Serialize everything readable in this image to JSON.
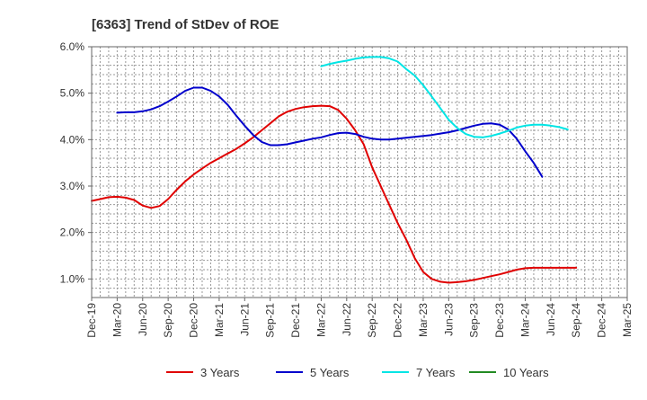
{
  "chart_data": {
    "type": "line",
    "title": "[6363]  Trend of StDev of ROE",
    "xlabel": "",
    "ylabel": "",
    "x_ticks": [
      "Dec-19",
      "Mar-20",
      "Jun-20",
      "Sep-20",
      "Dec-20",
      "Mar-21",
      "Jun-21",
      "Sep-21",
      "Dec-21",
      "Mar-22",
      "Jun-22",
      "Sep-22",
      "Dec-22",
      "Mar-23",
      "Jun-23",
      "Sep-23",
      "Dec-23",
      "Mar-24",
      "Jun-24",
      "Sep-24",
      "Dec-24",
      "Mar-25"
    ],
    "y_ticks": [
      "1.0%",
      "2.0%",
      "3.0%",
      "4.0%",
      "5.0%",
      "6.0%"
    ],
    "y_tick_values": [
      1.0,
      2.0,
      3.0,
      4.0,
      5.0,
      6.0
    ],
    "ylim": [
      0.6,
      6.0
    ],
    "grid": true,
    "legend_position": "bottom",
    "series": [
      {
        "name": "3 Years",
        "color": "#e00000",
        "points": [
          [
            "Dec-19",
            2.68
          ],
          [
            "Jan-20",
            2.72
          ],
          [
            "Feb-20",
            2.76
          ],
          [
            "Mar-20",
            2.77
          ],
          [
            "Apr-20",
            2.75
          ],
          [
            "May-20",
            2.7
          ],
          [
            "Jun-20",
            2.58
          ],
          [
            "Jul-20",
            2.53
          ],
          [
            "Aug-20",
            2.57
          ],
          [
            "Sep-20",
            2.72
          ],
          [
            "Oct-20",
            2.92
          ],
          [
            "Nov-20",
            3.1
          ],
          [
            "Dec-20",
            3.25
          ],
          [
            "Jan-21",
            3.38
          ],
          [
            "Feb-21",
            3.5
          ],
          [
            "Mar-21",
            3.6
          ],
          [
            "Apr-21",
            3.7
          ],
          [
            "May-21",
            3.8
          ],
          [
            "Jun-21",
            3.92
          ],
          [
            "Jul-21",
            4.05
          ],
          [
            "Aug-21",
            4.2
          ],
          [
            "Sep-21",
            4.35
          ],
          [
            "Oct-21",
            4.5
          ],
          [
            "Nov-21",
            4.6
          ],
          [
            "Dec-21",
            4.66
          ],
          [
            "Jan-22",
            4.7
          ],
          [
            "Feb-22",
            4.72
          ],
          [
            "Mar-22",
            4.73
          ],
          [
            "Apr-22",
            4.72
          ],
          [
            "May-22",
            4.64
          ],
          [
            "Jun-22",
            4.45
          ],
          [
            "Jul-22",
            4.2
          ],
          [
            "Aug-22",
            3.9
          ],
          [
            "Sep-22",
            3.4
          ],
          [
            "Oct-22",
            3.0
          ],
          [
            "Nov-22",
            2.6
          ],
          [
            "Dec-22",
            2.2
          ],
          [
            "Jan-23",
            1.85
          ],
          [
            "Feb-23",
            1.45
          ],
          [
            "Mar-23",
            1.15
          ],
          [
            "Apr-23",
            1.0
          ],
          [
            "May-23",
            0.94
          ],
          [
            "Jun-23",
            0.92
          ],
          [
            "Jul-23",
            0.93
          ],
          [
            "Aug-23",
            0.95
          ],
          [
            "Sep-23",
            0.98
          ],
          [
            "Oct-23",
            1.02
          ],
          [
            "Nov-23",
            1.06
          ],
          [
            "Dec-23",
            1.1
          ],
          [
            "Jan-24",
            1.15
          ],
          [
            "Feb-24",
            1.2
          ],
          [
            "Mar-24",
            1.23
          ],
          [
            "Apr-24",
            1.24
          ],
          [
            "May-24",
            1.24
          ],
          [
            "Jun-24",
            1.24
          ],
          [
            "Jul-24",
            1.24
          ],
          [
            "Aug-24",
            1.24
          ],
          [
            "Sep-24",
            1.24
          ]
        ]
      },
      {
        "name": "5 Years",
        "color": "#0000cc",
        "points": [
          [
            "Mar-20",
            4.58
          ],
          [
            "Apr-20",
            4.59
          ],
          [
            "May-20",
            4.59
          ],
          [
            "Jun-20",
            4.61
          ],
          [
            "Jul-20",
            4.65
          ],
          [
            "Aug-20",
            4.72
          ],
          [
            "Sep-20",
            4.82
          ],
          [
            "Oct-20",
            4.93
          ],
          [
            "Nov-20",
            5.05
          ],
          [
            "Dec-20",
            5.12
          ],
          [
            "Jan-21",
            5.12
          ],
          [
            "Feb-21",
            5.05
          ],
          [
            "Mar-21",
            4.93
          ],
          [
            "Apr-21",
            4.75
          ],
          [
            "May-21",
            4.52
          ],
          [
            "Jun-21",
            4.3
          ],
          [
            "Jul-21",
            4.1
          ],
          [
            "Aug-21",
            3.95
          ],
          [
            "Sep-21",
            3.88
          ],
          [
            "Oct-21",
            3.88
          ],
          [
            "Nov-21",
            3.9
          ],
          [
            "Dec-21",
            3.94
          ],
          [
            "Jan-22",
            3.98
          ],
          [
            "Feb-22",
            4.02
          ],
          [
            "Mar-22",
            4.05
          ],
          [
            "Apr-22",
            4.1
          ],
          [
            "May-22",
            4.14
          ],
          [
            "Jun-22",
            4.15
          ],
          [
            "Jul-22",
            4.12
          ],
          [
            "Aug-22",
            4.06
          ],
          [
            "Sep-22",
            4.02
          ],
          [
            "Oct-22",
            4.0
          ],
          [
            "Nov-22",
            4.0
          ],
          [
            "Dec-22",
            4.02
          ],
          [
            "Jan-23",
            4.04
          ],
          [
            "Feb-23",
            4.06
          ],
          [
            "Mar-23",
            4.08
          ],
          [
            "Apr-23",
            4.1
          ],
          [
            "May-23",
            4.13
          ],
          [
            "Jun-23",
            4.16
          ],
          [
            "Jul-23",
            4.2
          ],
          [
            "Aug-23",
            4.25
          ],
          [
            "Sep-23",
            4.3
          ],
          [
            "Oct-23",
            4.34
          ],
          [
            "Nov-23",
            4.35
          ],
          [
            "Dec-23",
            4.32
          ],
          [
            "Jan-24",
            4.22
          ],
          [
            "Feb-24",
            4.02
          ],
          [
            "Mar-24",
            3.75
          ],
          [
            "Apr-24",
            3.5
          ],
          [
            "May-24",
            3.2
          ]
        ]
      },
      {
        "name": "7 Years",
        "color": "#00e5e5",
        "points": [
          [
            "Mar-22",
            5.58
          ],
          [
            "Apr-22",
            5.63
          ],
          [
            "May-22",
            5.67
          ],
          [
            "Jun-22",
            5.7
          ],
          [
            "Jul-22",
            5.74
          ],
          [
            "Aug-22",
            5.77
          ],
          [
            "Sep-22",
            5.78
          ],
          [
            "Oct-22",
            5.78
          ],
          [
            "Nov-22",
            5.75
          ],
          [
            "Dec-22",
            5.68
          ],
          [
            "Jan-23",
            5.52
          ],
          [
            "Feb-23",
            5.38
          ],
          [
            "Mar-23",
            5.17
          ],
          [
            "Apr-23",
            4.93
          ],
          [
            "May-23",
            4.68
          ],
          [
            "Jun-23",
            4.43
          ],
          [
            "Jul-23",
            4.25
          ],
          [
            "Aug-23",
            4.12
          ],
          [
            "Sep-23",
            4.06
          ],
          [
            "Oct-23",
            4.05
          ],
          [
            "Nov-23",
            4.08
          ],
          [
            "Dec-23",
            4.13
          ],
          [
            "Jan-24",
            4.19
          ],
          [
            "Feb-24",
            4.26
          ],
          [
            "Mar-24",
            4.3
          ],
          [
            "Apr-24",
            4.32
          ],
          [
            "May-24",
            4.32
          ],
          [
            "Jun-24",
            4.3
          ],
          [
            "Jul-24",
            4.27
          ],
          [
            "Aug-24",
            4.22
          ]
        ]
      },
      {
        "name": "10 Years",
        "color": "#228b22",
        "points": []
      }
    ]
  }
}
